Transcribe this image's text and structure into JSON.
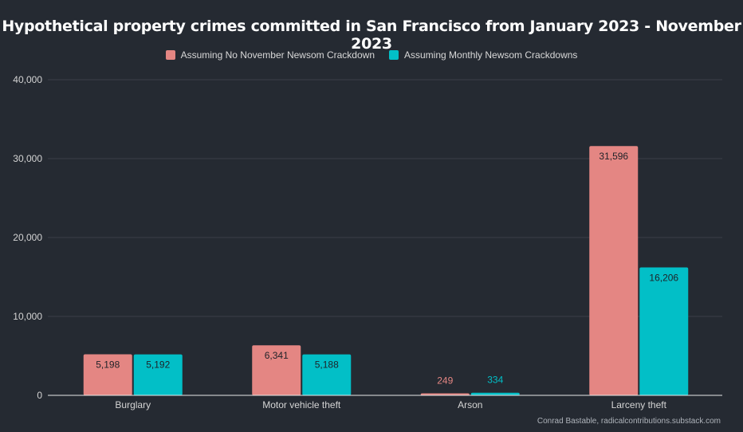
{
  "chart_data": {
    "type": "bar",
    "title": "Hypothetical property crimes committed in San Francisco from January 2023 - November 2023",
    "categories": [
      "Burglary",
      "Motor vehicle theft",
      "Arson",
      "Larceny theft"
    ],
    "series": [
      {
        "name": "Assuming No November Newsom Crackdown",
        "values": [
          5198,
          6341,
          249,
          31596
        ],
        "labels": [
          "5,198",
          "6,341",
          "249",
          "31,596"
        ],
        "color": "#e48683"
      },
      {
        "name": "Assuming Monthly Newsom Crackdowns",
        "values": [
          5192,
          5188,
          334,
          16206
        ],
        "labels": [
          "5,192",
          "5,188",
          "334",
          "16,206"
        ],
        "color": "#02bfc7"
      }
    ],
    "ylim": [
      0,
      40000
    ],
    "yticks": [
      0,
      10000,
      20000,
      30000,
      40000
    ],
    "ytick_labels": [
      "0",
      "10,000",
      "20,000",
      "30,000",
      "40,000"
    ],
    "xlabel": "",
    "ylabel": "",
    "grid": true,
    "legend_position": "top-center"
  },
  "credit": "Conrad Bastable, radicalcontributions.substack.com"
}
